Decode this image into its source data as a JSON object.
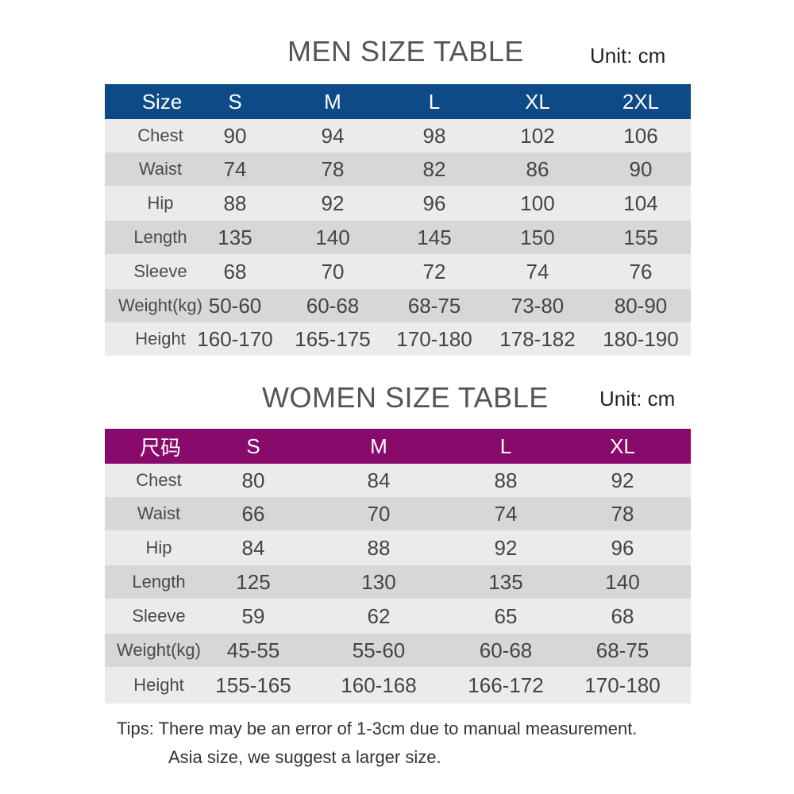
{
  "men": {
    "title": "MEN SIZE TABLE",
    "unit": "Unit: cm",
    "header_color": "#0e4a86",
    "header_label": "Size",
    "sizes": [
      "S",
      "M",
      "L",
      "XL",
      "2XL"
    ],
    "rows": [
      {
        "label": "Chest",
        "values": [
          "90",
          "94",
          "98",
          "102",
          "106"
        ]
      },
      {
        "label": "Waist",
        "values": [
          "74",
          "78",
          "82",
          "86",
          "90"
        ]
      },
      {
        "label": "Hip",
        "values": [
          "88",
          "92",
          "96",
          "100",
          "104"
        ]
      },
      {
        "label": "Length",
        "values": [
          "135",
          "140",
          "145",
          "150",
          "155"
        ]
      },
      {
        "label": "Sleeve",
        "values": [
          "68",
          "70",
          "72",
          "74",
          "76"
        ]
      },
      {
        "label": "Weight(kg)",
        "values": [
          "50-60",
          "60-68",
          "68-75",
          "73-80",
          "80-90"
        ]
      },
      {
        "label": "Height",
        "values": [
          "160-170",
          "165-175",
          "170-180",
          "178-182",
          "180-190"
        ]
      }
    ]
  },
  "women": {
    "title": "WOMEN SIZE TABLE",
    "unit": "Unit: cm",
    "header_color": "#880a6a",
    "header_label": "尺码",
    "sizes": [
      "S",
      "M",
      "L",
      "XL"
    ],
    "rows": [
      {
        "label": "Chest",
        "values": [
          "80",
          "84",
          "88",
          "92"
        ]
      },
      {
        "label": "Waist",
        "values": [
          "66",
          "70",
          "74",
          "78"
        ]
      },
      {
        "label": "Hip",
        "values": [
          "84",
          "88",
          "92",
          "96"
        ]
      },
      {
        "label": "Length",
        "values": [
          "125",
          "130",
          "135",
          "140"
        ]
      },
      {
        "label": "Sleeve",
        "values": [
          "59",
          "62",
          "65",
          "68"
        ]
      },
      {
        "label": "Weight(kg)",
        "values": [
          "45-55",
          "55-60",
          "60-68",
          "68-75"
        ]
      },
      {
        "label": "Height",
        "values": [
          "155-165",
          "160-168",
          "166-172",
          "170-180"
        ]
      }
    ]
  },
  "tips": {
    "line1": "Tips:  There may be an error of 1-3cm due to manual measurement.",
    "line2": "Asia size, we suggest a larger size."
  }
}
